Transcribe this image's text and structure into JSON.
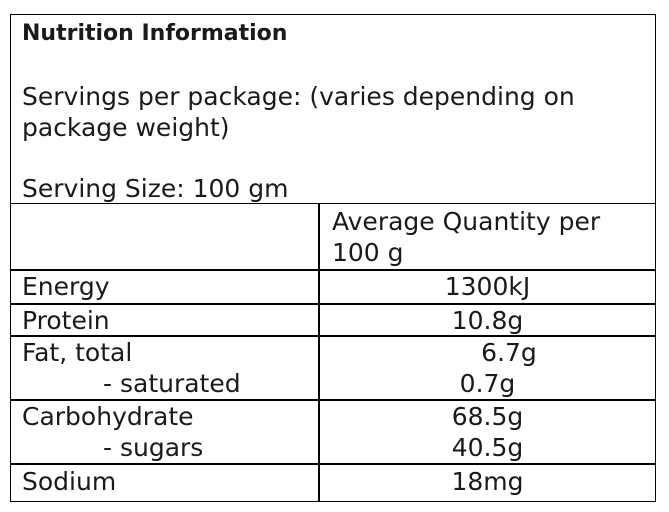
{
  "title": "Nutrition Information",
  "servings_per_package": "Servings per package: (varies depending on package weight)",
  "serving_size": "Serving Size: 100 gm",
  "column_header": "Average Quantity per 100 g",
  "rows": [
    {
      "label": "Energy",
      "value": "1300kJ"
    },
    {
      "label": "Protein",
      "value": "10.8g"
    },
    {
      "label": "Fat, total",
      "value": "6.7g"
    },
    {
      "label": "- saturated",
      "value": "0.7g"
    },
    {
      "label": "Carbohydrate",
      "value": "68.5g"
    },
    {
      "label": "- sugars",
      "value": "40.5g"
    },
    {
      "label": "Sodium",
      "value": "18mg"
    }
  ]
}
